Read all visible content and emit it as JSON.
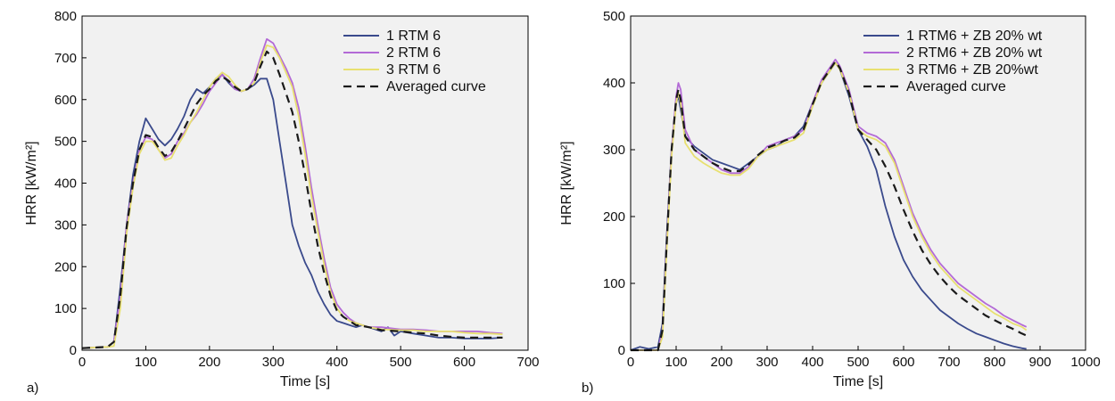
{
  "chart_data": [
    {
      "type": "line",
      "panel_label": "a)",
      "xlabel": "Time [s]",
      "ylabel": "HRR [kW/m²]",
      "xlim": [
        0,
        700
      ],
      "ylim": [
        0,
        800
      ],
      "xticks": [
        0,
        100,
        200,
        300,
        400,
        500,
        600,
        700
      ],
      "yticks": [
        0,
        100,
        200,
        300,
        400,
        500,
        600,
        700,
        800
      ],
      "grid": false,
      "legend_position": "top-right",
      "background": "#f1f1f1",
      "series": [
        {
          "name": "1 RTM 6",
          "color": "#3a4a8c",
          "dash": "solid",
          "x": [
            0,
            40,
            50,
            60,
            70,
            80,
            90,
            100,
            110,
            120,
            130,
            140,
            150,
            160,
            170,
            180,
            190,
            200,
            210,
            220,
            230,
            240,
            250,
            260,
            270,
            280,
            290,
            300,
            310,
            320,
            330,
            340,
            350,
            360,
            370,
            380,
            390,
            400,
            410,
            420,
            430,
            440,
            450,
            470,
            480,
            490,
            500,
            520,
            540,
            560,
            580,
            600,
            620,
            640,
            660
          ],
          "y": [
            5,
            8,
            20,
            150,
            300,
            420,
            500,
            555,
            530,
            505,
            490,
            505,
            530,
            560,
            600,
            625,
            615,
            630,
            650,
            660,
            640,
            625,
            620,
            625,
            635,
            650,
            650,
            600,
            500,
            400,
            300,
            250,
            210,
            180,
            140,
            110,
            85,
            70,
            65,
            60,
            55,
            60,
            55,
            45,
            55,
            35,
            45,
            40,
            35,
            30,
            30,
            28,
            28,
            28,
            30
          ]
        },
        {
          "name": "2 RTM 6",
          "color": "#b36ad6",
          "dash": "solid",
          "x": [
            0,
            40,
            50,
            60,
            70,
            80,
            90,
            100,
            110,
            120,
            130,
            140,
            150,
            160,
            170,
            180,
            190,
            200,
            210,
            220,
            230,
            240,
            250,
            260,
            270,
            280,
            290,
            300,
            310,
            320,
            330,
            340,
            350,
            360,
            370,
            380,
            390,
            400,
            410,
            420,
            430,
            440,
            450,
            470,
            500,
            520,
            540,
            560,
            580,
            600,
            620,
            640,
            660
          ],
          "y": [
            5,
            8,
            20,
            130,
            300,
            400,
            480,
            510,
            505,
            480,
            460,
            470,
            500,
            520,
            545,
            565,
            590,
            620,
            640,
            660,
            645,
            625,
            620,
            625,
            650,
            700,
            745,
            735,
            705,
            675,
            640,
            580,
            490,
            390,
            300,
            220,
            150,
            110,
            90,
            75,
            65,
            60,
            55,
            55,
            50,
            50,
            48,
            45,
            45,
            45,
            45,
            42,
            40
          ]
        },
        {
          "name": "3 RTM 6",
          "color": "#e8e070",
          "dash": "solid",
          "x": [
            0,
            40,
            50,
            60,
            70,
            80,
            90,
            100,
            110,
            120,
            130,
            140,
            150,
            160,
            170,
            180,
            190,
            200,
            210,
            220,
            230,
            240,
            250,
            260,
            270,
            280,
            290,
            300,
            310,
            320,
            330,
            340,
            350,
            360,
            370,
            380,
            390,
            400,
            410,
            420,
            430,
            440,
            450,
            470,
            500,
            520,
            540,
            560,
            580,
            600,
            620,
            640,
            660
          ],
          "y": [
            5,
            8,
            10,
            100,
            280,
            390,
            470,
            500,
            500,
            480,
            455,
            460,
            490,
            515,
            545,
            570,
            600,
            630,
            650,
            665,
            655,
            635,
            620,
            625,
            640,
            690,
            730,
            725,
            700,
            665,
            630,
            560,
            470,
            370,
            285,
            205,
            140,
            100,
            80,
            70,
            65,
            60,
            55,
            50,
            48,
            48,
            45,
            45,
            45,
            42,
            40,
            40,
            38
          ]
        },
        {
          "name": "Averaged curve",
          "color": "#1a1a1a",
          "dash": "dashed",
          "x": [
            0,
            40,
            50,
            60,
            70,
            80,
            90,
            100,
            110,
            120,
            130,
            140,
            150,
            160,
            170,
            180,
            190,
            200,
            210,
            220,
            230,
            240,
            250,
            260,
            270,
            280,
            290,
            300,
            310,
            320,
            330,
            340,
            350,
            360,
            370,
            380,
            390,
            400,
            410,
            420,
            430,
            440,
            450,
            470,
            500,
            520,
            540,
            560,
            580,
            600,
            620,
            640,
            660
          ],
          "y": [
            5,
            8,
            20,
            130,
            295,
            400,
            480,
            515,
            510,
            485,
            465,
            475,
            500,
            530,
            560,
            590,
            610,
            625,
            645,
            655,
            645,
            630,
            620,
            625,
            640,
            680,
            715,
            700,
            660,
            615,
            570,
            500,
            420,
            330,
            250,
            185,
            130,
            95,
            80,
            70,
            60,
            58,
            55,
            48,
            45,
            42,
            40,
            35,
            32,
            30,
            30,
            30,
            30
          ]
        }
      ]
    },
    {
      "type": "line",
      "panel_label": "b)",
      "xlabel": "Time [s]",
      "ylabel": "HRR [kW/m²]",
      "xlim": [
        0,
        1000
      ],
      "ylim": [
        0,
        500
      ],
      "xticks": [
        0,
        100,
        200,
        300,
        400,
        500,
        600,
        700,
        800,
        900,
        1000
      ],
      "yticks": [
        0,
        100,
        200,
        300,
        400,
        500
      ],
      "grid": false,
      "legend_position": "top-right",
      "background": "#f1f1f1",
      "series": [
        {
          "name": "1 RTM6 + ZB 20% wt",
          "color": "#3a4a8c",
          "dash": "solid",
          "x": [
            0,
            20,
            40,
            60,
            70,
            80,
            90,
            100,
            105,
            110,
            120,
            140,
            160,
            180,
            200,
            220,
            240,
            260,
            280,
            300,
            320,
            340,
            360,
            380,
            400,
            420,
            440,
            450,
            460,
            480,
            500,
            520,
            540,
            560,
            580,
            600,
            620,
            640,
            660,
            680,
            700,
            720,
            740,
            760,
            780,
            800,
            820,
            840,
            860,
            870
          ],
          "y": [
            0,
            5,
            2,
            5,
            40,
            180,
            300,
            370,
            380,
            360,
            320,
            305,
            295,
            285,
            280,
            275,
            270,
            280,
            290,
            300,
            305,
            315,
            320,
            335,
            370,
            400,
            420,
            430,
            420,
            380,
            330,
            305,
            270,
            215,
            170,
            135,
            110,
            90,
            75,
            60,
            50,
            40,
            32,
            25,
            20,
            15,
            10,
            6,
            3,
            2
          ]
        },
        {
          "name": "2 RTM6 + ZB 20% wt",
          "color": "#b36ad6",
          "dash": "solid",
          "x": [
            0,
            60,
            70,
            80,
            90,
            100,
            105,
            110,
            120,
            140,
            160,
            180,
            200,
            220,
            240,
            260,
            280,
            300,
            320,
            340,
            360,
            380,
            400,
            420,
            440,
            450,
            460,
            480,
            500,
            520,
            540,
            560,
            580,
            600,
            620,
            640,
            660,
            680,
            700,
            720,
            740,
            760,
            780,
            800,
            820,
            840,
            860,
            870
          ],
          "y": [
            0,
            0,
            30,
            170,
            300,
            380,
            400,
            390,
            330,
            300,
            290,
            280,
            270,
            265,
            265,
            275,
            290,
            305,
            310,
            315,
            320,
            330,
            370,
            405,
            425,
            435,
            425,
            390,
            335,
            325,
            320,
            310,
            285,
            245,
            205,
            175,
            150,
            130,
            115,
            100,
            90,
            80,
            70,
            62,
            52,
            45,
            38,
            35
          ]
        },
        {
          "name": "3 RTM6 + ZB 20%wt",
          "color": "#e8e070",
          "dash": "solid",
          "x": [
            0,
            60,
            70,
            80,
            90,
            100,
            105,
            110,
            120,
            140,
            160,
            180,
            200,
            220,
            240,
            260,
            280,
            300,
            320,
            340,
            360,
            380,
            400,
            420,
            440,
            450,
            460,
            480,
            500,
            520,
            540,
            560,
            580,
            600,
            620,
            640,
            660,
            680,
            700,
            720,
            740,
            760,
            780,
            800,
            820,
            840,
            860,
            870
          ],
          "y": [
            0,
            0,
            20,
            160,
            290,
            370,
            385,
            370,
            310,
            290,
            280,
            272,
            265,
            262,
            262,
            272,
            290,
            300,
            305,
            310,
            315,
            325,
            365,
            400,
            420,
            430,
            420,
            385,
            330,
            320,
            315,
            305,
            280,
            240,
            200,
            170,
            145,
            125,
            110,
            95,
            85,
            75,
            65,
            55,
            48,
            40,
            35,
            30
          ]
        },
        {
          "name": "Averaged curve",
          "color": "#1a1a1a",
          "dash": "dashed",
          "x": [
            0,
            60,
            70,
            80,
            90,
            100,
            105,
            110,
            120,
            140,
            160,
            180,
            200,
            220,
            240,
            260,
            280,
            300,
            320,
            340,
            360,
            380,
            400,
            420,
            440,
            450,
            460,
            480,
            500,
            520,
            540,
            560,
            580,
            600,
            620,
            640,
            660,
            680,
            700,
            720,
            740,
            760,
            780,
            800,
            820,
            840,
            860,
            870
          ],
          "y": [
            0,
            0,
            30,
            170,
            300,
            375,
            390,
            375,
            320,
            300,
            290,
            280,
            273,
            268,
            268,
            278,
            292,
            303,
            308,
            314,
            318,
            330,
            368,
            402,
            422,
            432,
            422,
            385,
            330,
            315,
            300,
            275,
            245,
            210,
            178,
            150,
            128,
            110,
            95,
            82,
            72,
            62,
            52,
            45,
            38,
            32,
            25,
            22
          ]
        }
      ]
    }
  ]
}
